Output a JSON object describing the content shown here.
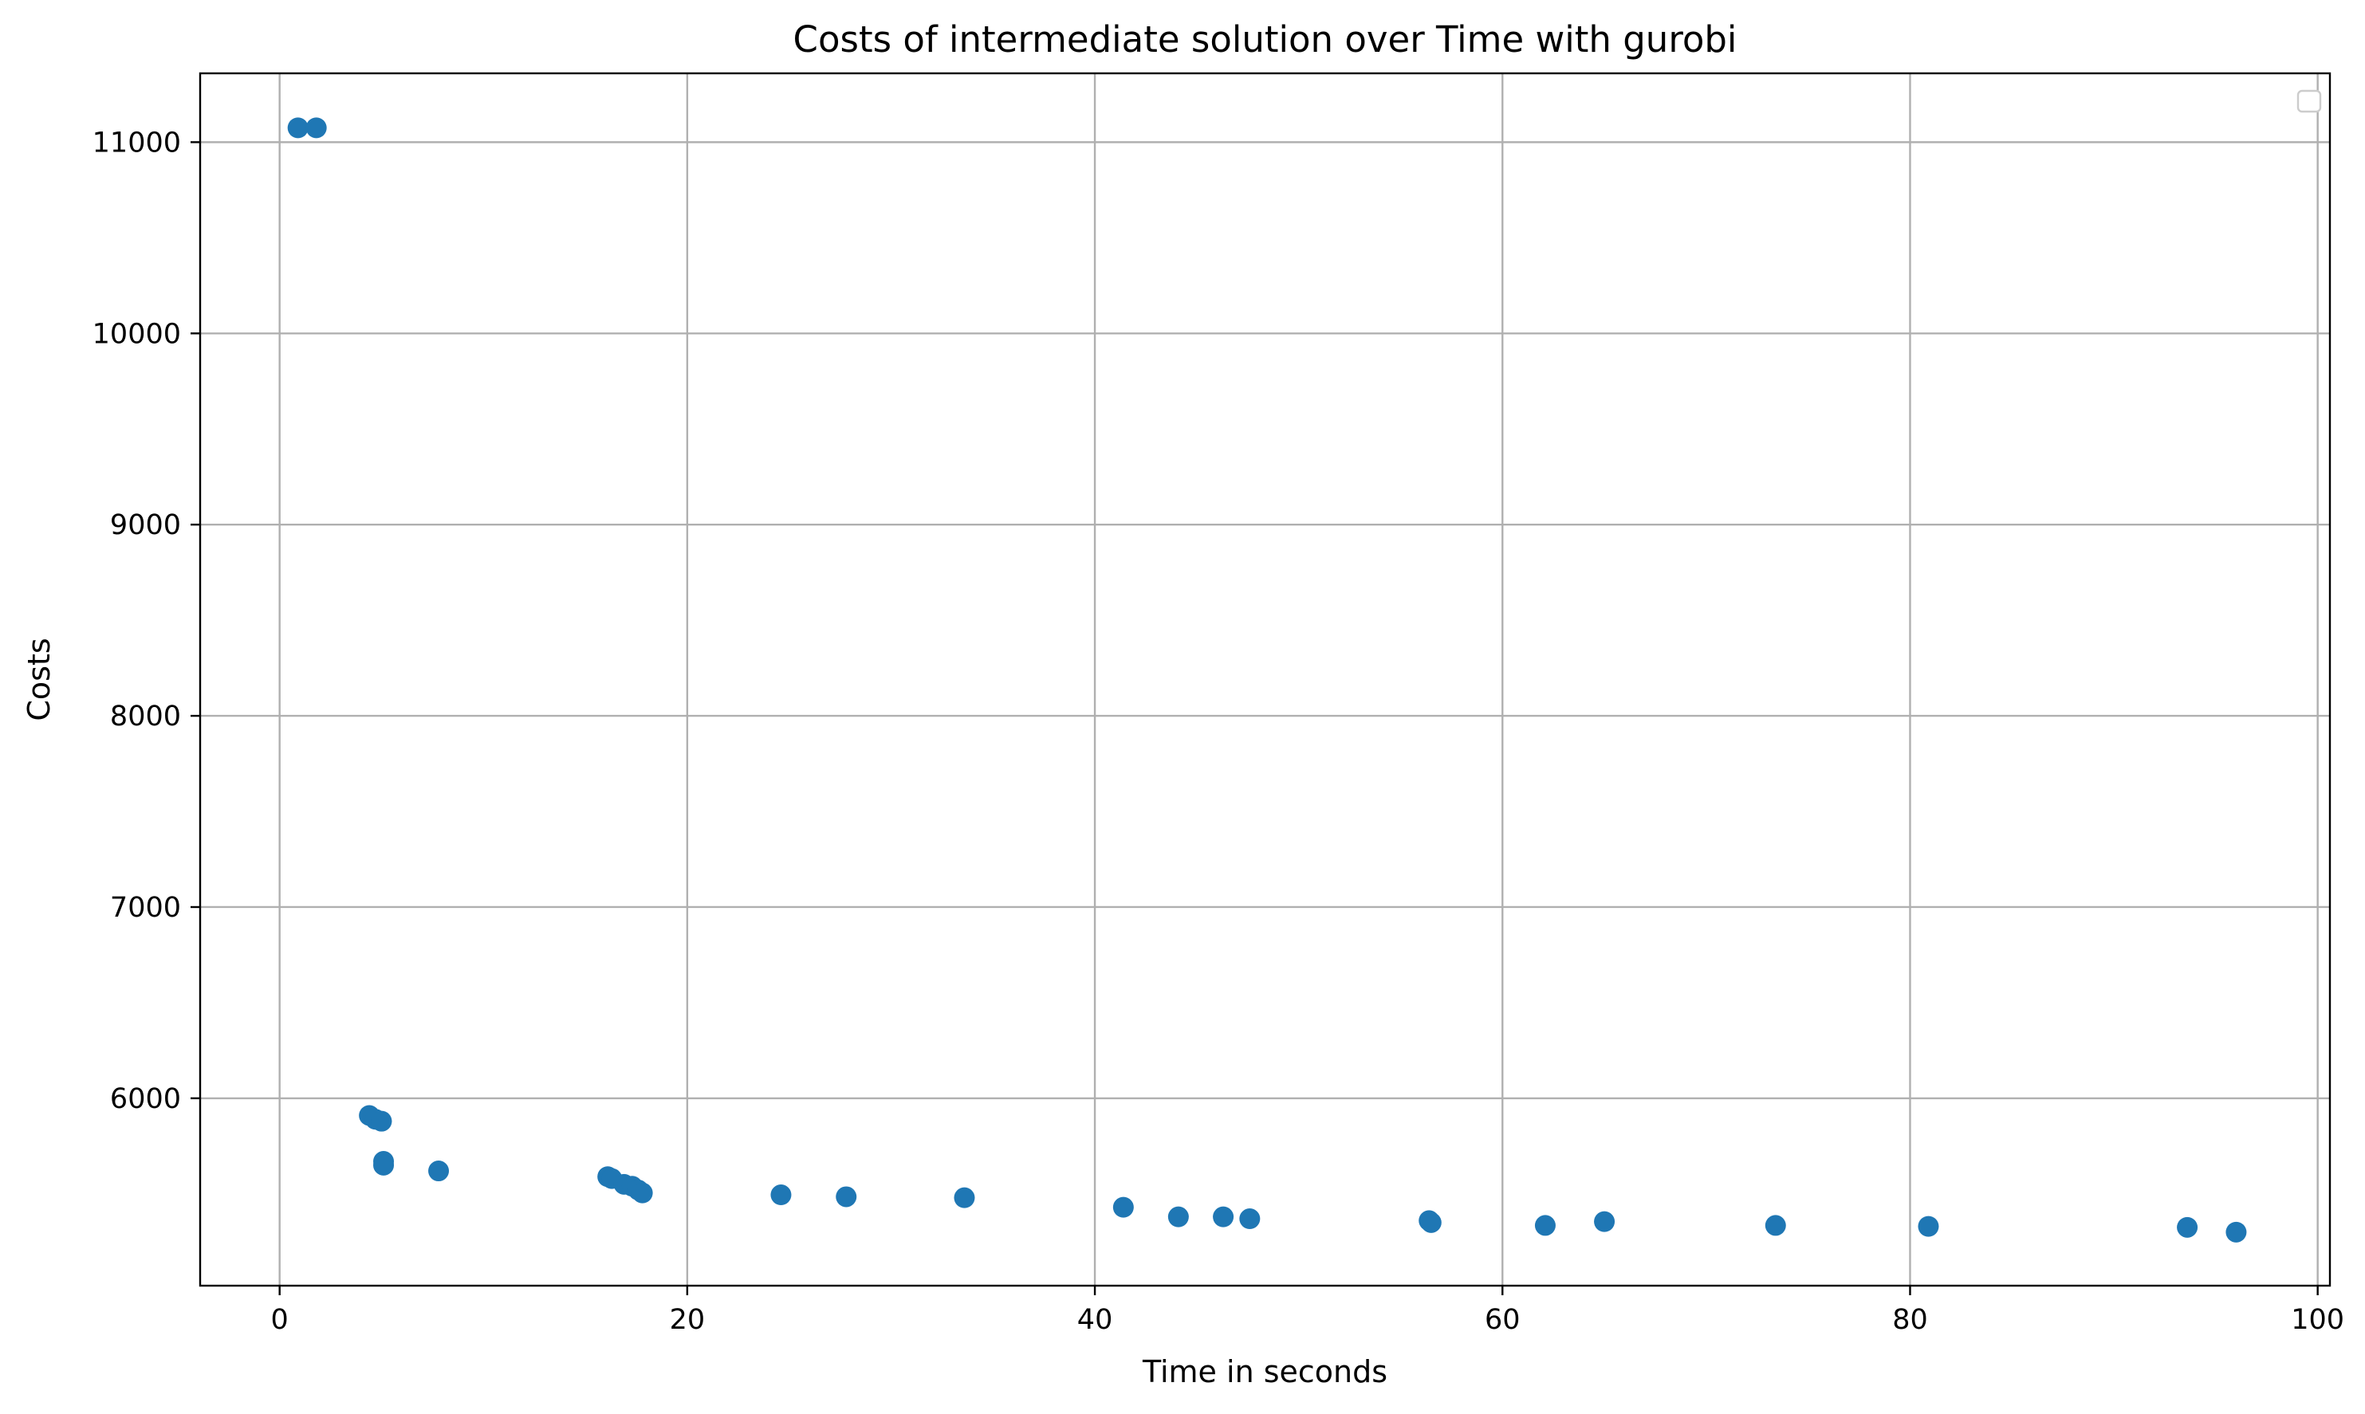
{
  "chart_data": {
    "type": "scatter",
    "title": "Costs of intermediate solution over Time with gurobi",
    "xlabel": "Time in seconds",
    "ylabel": "Costs",
    "xlim": [
      -3.9,
      100.6
    ],
    "ylim": [
      5020,
      11360
    ],
    "xticks": [
      0,
      20,
      40,
      60,
      80,
      100
    ],
    "yticks": [
      6000,
      7000,
      8000,
      9000,
      10000,
      11000
    ],
    "grid": true,
    "legend": {
      "position": "top-right",
      "entries": []
    },
    "colors": {
      "marker": "#1f77b4",
      "grid": "#b0b0b0",
      "axes": "#000000"
    },
    "series": [
      {
        "points": [
          [
            0.9,
            11075
          ],
          [
            1.8,
            11075
          ],
          [
            4.4,
            5910
          ],
          [
            4.7,
            5890
          ],
          [
            5.0,
            5880
          ],
          [
            5.1,
            5670
          ],
          [
            5.1,
            5650
          ],
          [
            7.8,
            5620
          ],
          [
            16.1,
            5590
          ],
          [
            16.3,
            5580
          ],
          [
            16.9,
            5550
          ],
          [
            17.3,
            5540
          ],
          [
            17.6,
            5520
          ],
          [
            17.8,
            5505
          ],
          [
            24.6,
            5495
          ],
          [
            27.8,
            5485
          ],
          [
            33.6,
            5480
          ],
          [
            41.4,
            5430
          ],
          [
            44.1,
            5380
          ],
          [
            46.3,
            5380
          ],
          [
            47.6,
            5370
          ],
          [
            56.4,
            5360
          ],
          [
            56.5,
            5350
          ],
          [
            62.1,
            5335
          ],
          [
            65.0,
            5355
          ],
          [
            73.4,
            5335
          ],
          [
            80.9,
            5330
          ],
          [
            93.6,
            5325
          ],
          [
            96.0,
            5300
          ]
        ]
      }
    ]
  }
}
